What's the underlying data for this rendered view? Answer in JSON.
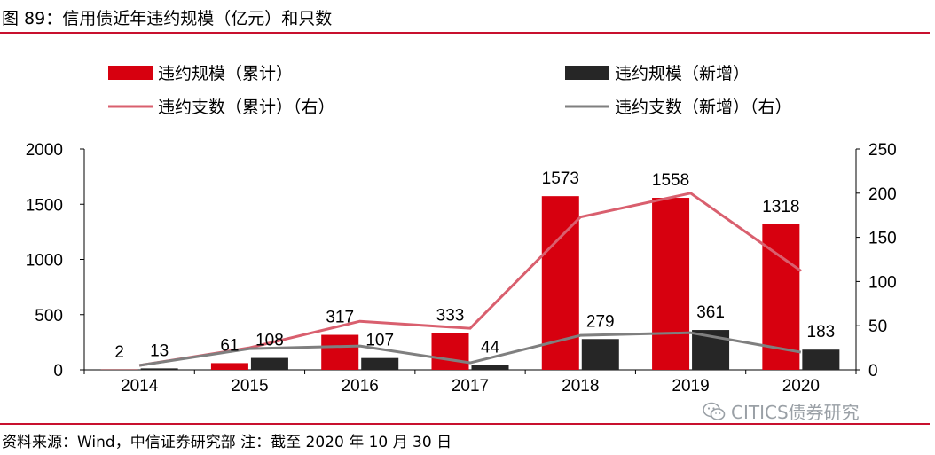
{
  "title": "图 89：信用债近年违约规模（亿元）和只数",
  "source": "资料来源：Wind，中信证券研究部    注：截至 2020 年 10 月 30 日",
  "watermark": "CITICS债券研究",
  "colors": {
    "rule": "#c8102e",
    "bar_cumulative": "#d7000f",
    "bar_new": "#262626",
    "line_cumulative": "#d95f6e",
    "line_new": "#7f7f7f",
    "axis": "#000000"
  },
  "chart_data": {
    "type": "bar",
    "title": "信用债近年违约规模（亿元）和只数",
    "categories": [
      "2014",
      "2015",
      "2016",
      "2017",
      "2018",
      "2019",
      "2020"
    ],
    "ylim": [
      0,
      2000
    ],
    "y2lim": [
      0,
      250
    ],
    "yticks": [
      0,
      500,
      1000,
      1500,
      2000
    ],
    "y2ticks": [
      0,
      50,
      100,
      150,
      200,
      250
    ],
    "series": [
      {
        "name": "违约规模（累计）",
        "type": "bar",
        "axis": "left",
        "values": [
          2,
          61,
          317,
          333,
          1573,
          1558,
          1318
        ],
        "labels": [
          "2",
          "61",
          "317",
          "333",
          "1573",
          "1558",
          "1318"
        ]
      },
      {
        "name": "违约规模（新增）",
        "type": "bar",
        "axis": "left",
        "values": [
          13,
          108,
          107,
          44,
          279,
          361,
          183
        ],
        "labels": [
          "13",
          "108",
          "107",
          "44",
          "279",
          "361",
          "183"
        ]
      },
      {
        "name": "违约支数（累计）（右）",
        "type": "line",
        "axis": "right",
        "values": [
          5,
          25,
          55,
          47,
          173,
          200,
          112
        ]
      },
      {
        "name": "违约支数（新增）（右）",
        "type": "line",
        "axis": "right",
        "values": [
          5,
          24,
          27,
          8,
          39,
          42,
          20
        ]
      }
    ],
    "legend": [
      "违约规模（累计）",
      "违约规模（新增）",
      "违约支数（累计）（右）",
      "违约支数（新增）（右）"
    ],
    "legend_position": "top"
  }
}
